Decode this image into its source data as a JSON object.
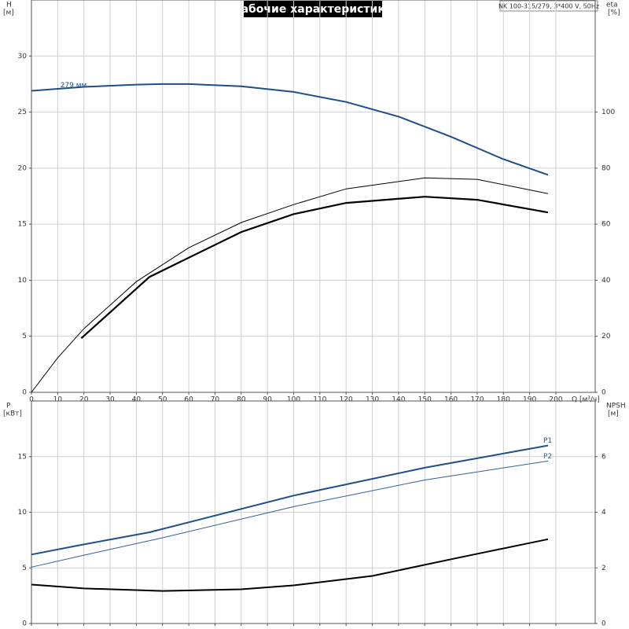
{
  "chart_data": [
    {
      "type": "line",
      "title": "Рабочие характеристики",
      "subtitle": "NK 100-315/279, 3*400 V, 50Hz",
      "xlabel": "Q [м³/ч]",
      "ylabel": "H",
      "yunit": "[м]",
      "y2label": "eta",
      "y2unit": "[%]",
      "xlim": [
        0,
        215
      ],
      "xticks": [
        0,
        10,
        20,
        30,
        40,
        50,
        60,
        70,
        80,
        90,
        100,
        110,
        120,
        130,
        140,
        150,
        160,
        170,
        180,
        190,
        200
      ],
      "xtick_labels": true,
      "ylim": [
        0,
        35
      ],
      "yticks": [
        0,
        5,
        10,
        15,
        20,
        25,
        30
      ],
      "y2lim": [
        0,
        140
      ],
      "y2ticks": [
        0,
        20,
        40,
        60,
        80,
        100
      ],
      "grid": true,
      "series": [
        {
          "name": "279 мм",
          "label_at": "start",
          "color": "#1f4e8c",
          "width": 2,
          "x": [
            0,
            20,
            40,
            50,
            60,
            80,
            100,
            120,
            140,
            160,
            180,
            197
          ],
          "values": [
            26.9,
            27.25,
            27.45,
            27.5,
            27.5,
            27.3,
            26.8,
            25.9,
            24.6,
            22.8,
            20.8,
            19.4
          ]
        },
        {
          "axis": "y2",
          "color": "#000000",
          "width": 2.2,
          "x": [
            19,
            45,
            80,
            100,
            120,
            150,
            170,
            197
          ],
          "values": [
            19.3,
            41.2,
            57.2,
            63.6,
            67.6,
            69.8,
            68.7,
            64.2
          ]
        },
        {
          "axis": "y2",
          "color": "#000000",
          "width": 1,
          "x": [
            0,
            10,
            20,
            40,
            60,
            80,
            100,
            120,
            150,
            170,
            197
          ],
          "values": [
            0,
            12.3,
            22.7,
            39.5,
            51.6,
            60.6,
            67,
            72.6,
            76.5,
            76,
            70.9
          ]
        }
      ]
    },
    {
      "type": "line",
      "ylabel": "P",
      "yunit": "[кВт]",
      "y2label": "NPSH",
      "y2unit": "[м]",
      "xlim": [
        0,
        215
      ],
      "xticks": [
        0,
        10,
        20,
        30,
        40,
        50,
        60,
        70,
        80,
        90,
        100,
        110,
        120,
        130,
        140,
        150,
        160,
        170,
        180,
        190,
        200
      ],
      "xtick_labels": false,
      "ylim": [
        0,
        20
      ],
      "yticks": [
        0,
        5,
        10,
        15
      ],
      "y2lim": [
        0,
        8
      ],
      "y2ticks": [
        0,
        2,
        4,
        6
      ],
      "grid": true,
      "series": [
        {
          "name": "P1",
          "label_at": "end",
          "color": "#1f4e8c",
          "width": 2,
          "x": [
            0,
            19,
            45,
            100,
            150,
            197
          ],
          "values": [
            6.2,
            7.07,
            8.2,
            11.5,
            14.0,
            16.0
          ]
        },
        {
          "name": "P2",
          "label_at": "end",
          "color": "#2f5f9c",
          "width": 1,
          "x": [
            0,
            20,
            50,
            100,
            150,
            197
          ],
          "values": [
            5.07,
            6.14,
            7.7,
            10.5,
            12.9,
            14.6
          ]
        },
        {
          "axis": "y2",
          "color": "#000000",
          "width": 2,
          "x": [
            0,
            20,
            50,
            80,
            100,
            130,
            160,
            197
          ],
          "values": [
            1.4,
            1.26,
            1.17,
            1.23,
            1.37,
            1.71,
            2.31,
            3.03
          ]
        }
      ]
    }
  ]
}
